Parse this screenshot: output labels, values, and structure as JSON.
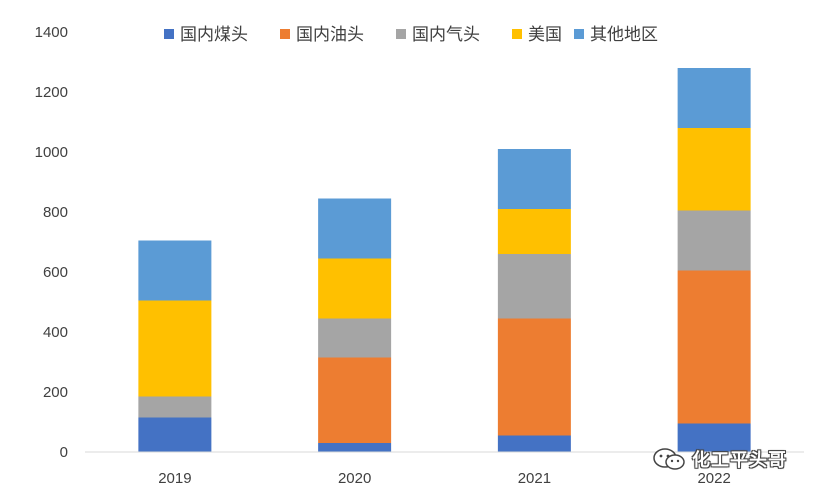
{
  "chart_data": {
    "type": "bar",
    "stacked": true,
    "categories": [
      "2019",
      "2020",
      "2021",
      "2022"
    ],
    "series": [
      {
        "name": "国内煤头",
        "color": "#4472C4",
        "values": [
          115,
          30,
          55,
          95
        ]
      },
      {
        "name": "国内油头",
        "color": "#ED7D31",
        "values": [
          0,
          285,
          390,
          510
        ]
      },
      {
        "name": "国内气头",
        "color": "#A5A5A5",
        "values": [
          70,
          130,
          215,
          200
        ]
      },
      {
        "name": "美国",
        "color": "#FFC000",
        "values": [
          320,
          200,
          150,
          275
        ]
      },
      {
        "name": "其他地区",
        "color": "#5B9BD5",
        "values": [
          200,
          200,
          200,
          200
        ]
      }
    ],
    "ylim": [
      0,
      1400
    ],
    "yticks": [
      0,
      200,
      400,
      600,
      800,
      1000,
      1200,
      1400
    ],
    "grid": false,
    "legend": "top",
    "title": "",
    "xlabel": "",
    "ylabel": ""
  },
  "watermark": {
    "icon": "wechat-icon",
    "text": "化工平头哥"
  }
}
